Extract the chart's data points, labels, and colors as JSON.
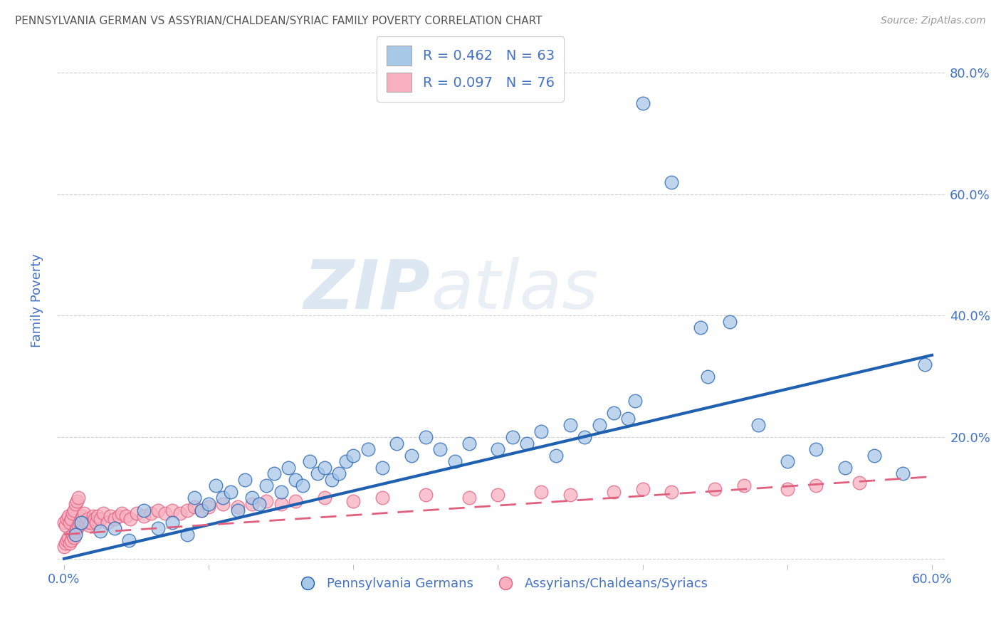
{
  "title": "PENNSYLVANIA GERMAN VS ASSYRIAN/CHALDEAN/SYRIAC FAMILY POVERTY CORRELATION CHART",
  "source": "Source: ZipAtlas.com",
  "ylabel": "Family Poverty",
  "blue_label": "Pennsylvania Germans",
  "pink_label": "Assyrians/Chaldeans/Syriacs",
  "blue_R": 0.462,
  "blue_N": 63,
  "pink_R": 0.097,
  "pink_N": 76,
  "xlim": [
    -0.005,
    0.61
  ],
  "ylim": [
    -0.01,
    0.86
  ],
  "blue_color": "#a8c8e8",
  "blue_line_color": "#2060b0",
  "pink_color": "#f8b0c0",
  "pink_line_color": "#e06080",
  "watermark_zip": "ZIP",
  "watermark_atlas": "atlas",
  "title_color": "#555555",
  "axis_label_color": "#4472c4",
  "tick_color": "#4472c4",
  "grid_color": "#cccccc",
  "background_color": "#ffffff",
  "blue_scatter_x": [
    0.008,
    0.012,
    0.025,
    0.035,
    0.045,
    0.055,
    0.065,
    0.075,
    0.085,
    0.09,
    0.095,
    0.1,
    0.105,
    0.11,
    0.115,
    0.12,
    0.125,
    0.13,
    0.135,
    0.14,
    0.145,
    0.15,
    0.155,
    0.16,
    0.165,
    0.17,
    0.175,
    0.18,
    0.185,
    0.19,
    0.195,
    0.2,
    0.21,
    0.22,
    0.23,
    0.24,
    0.25,
    0.26,
    0.27,
    0.28,
    0.3,
    0.31,
    0.32,
    0.33,
    0.34,
    0.35,
    0.36,
    0.37,
    0.38,
    0.39,
    0.4,
    0.42,
    0.44,
    0.46,
    0.48,
    0.395,
    0.445,
    0.5,
    0.52,
    0.54,
    0.56,
    0.58,
    0.595
  ],
  "blue_scatter_y": [
    0.04,
    0.06,
    0.045,
    0.05,
    0.03,
    0.08,
    0.05,
    0.06,
    0.04,
    0.1,
    0.08,
    0.09,
    0.12,
    0.1,
    0.11,
    0.08,
    0.13,
    0.1,
    0.09,
    0.12,
    0.14,
    0.11,
    0.15,
    0.13,
    0.12,
    0.16,
    0.14,
    0.15,
    0.13,
    0.14,
    0.16,
    0.17,
    0.18,
    0.15,
    0.19,
    0.17,
    0.2,
    0.18,
    0.16,
    0.19,
    0.18,
    0.2,
    0.19,
    0.21,
    0.17,
    0.22,
    0.2,
    0.22,
    0.24,
    0.23,
    0.75,
    0.62,
    0.38,
    0.39,
    0.22,
    0.26,
    0.3,
    0.16,
    0.18,
    0.15,
    0.17,
    0.14,
    0.32
  ],
  "pink_scatter_x": [
    0.0,
    0.0,
    0.001,
    0.001,
    0.002,
    0.002,
    0.003,
    0.003,
    0.004,
    0.004,
    0.005,
    0.005,
    0.006,
    0.006,
    0.007,
    0.007,
    0.008,
    0.008,
    0.009,
    0.009,
    0.01,
    0.01,
    0.011,
    0.012,
    0.013,
    0.014,
    0.015,
    0.016,
    0.017,
    0.018,
    0.02,
    0.021,
    0.022,
    0.023,
    0.025,
    0.027,
    0.03,
    0.032,
    0.035,
    0.038,
    0.04,
    0.043,
    0.046,
    0.05,
    0.055,
    0.06,
    0.065,
    0.07,
    0.075,
    0.08,
    0.085,
    0.09,
    0.095,
    0.1,
    0.11,
    0.12,
    0.13,
    0.14,
    0.15,
    0.16,
    0.18,
    0.2,
    0.22,
    0.25,
    0.28,
    0.3,
    0.33,
    0.35,
    0.38,
    0.4,
    0.42,
    0.45,
    0.47,
    0.5,
    0.52,
    0.55
  ],
  "pink_scatter_y": [
    0.02,
    0.06,
    0.025,
    0.055,
    0.03,
    0.065,
    0.035,
    0.07,
    0.025,
    0.06,
    0.03,
    0.065,
    0.04,
    0.075,
    0.035,
    0.08,
    0.045,
    0.09,
    0.05,
    0.095,
    0.055,
    0.1,
    0.06,
    0.065,
    0.07,
    0.075,
    0.06,
    0.065,
    0.055,
    0.06,
    0.07,
    0.065,
    0.06,
    0.07,
    0.065,
    0.075,
    0.06,
    0.07,
    0.065,
    0.07,
    0.075,
    0.07,
    0.065,
    0.075,
    0.07,
    0.075,
    0.08,
    0.075,
    0.08,
    0.075,
    0.08,
    0.085,
    0.08,
    0.085,
    0.09,
    0.085,
    0.09,
    0.095,
    0.09,
    0.095,
    0.1,
    0.095,
    0.1,
    0.105,
    0.1,
    0.105,
    0.11,
    0.105,
    0.11,
    0.115,
    0.11,
    0.115,
    0.12,
    0.115,
    0.12,
    0.125
  ],
  "blue_trend_x0": 0.0,
  "blue_trend_y0": 0.0,
  "blue_trend_x1": 0.6,
  "blue_trend_y1": 0.335,
  "pink_trend_x0": 0.0,
  "pink_trend_y0": 0.04,
  "pink_trend_x1": 0.6,
  "pink_trend_y1": 0.135
}
